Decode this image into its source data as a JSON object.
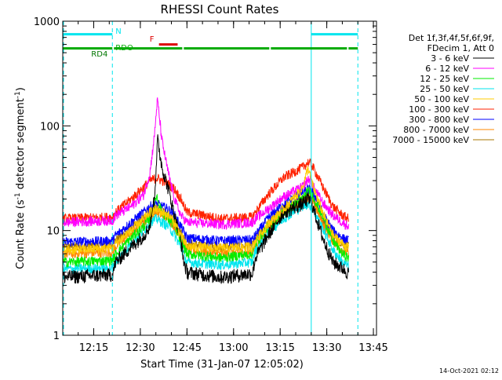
{
  "chart_data": {
    "type": "line",
    "title": "RHESSI Count Rates",
    "xlabel": "Start Time (31-Jan-07 12:05:02)",
    "ylabel_main": "Count Rate (s",
    "ylabel_sup1": "-1",
    "ylabel_mid": " detector segment",
    "ylabel_sup2": "-1",
    "ylabel_end": ")",
    "y_scale": "log",
    "ylim": [
      1,
      1000
    ],
    "xlim": [
      "12:05:02",
      "13:46:00"
    ],
    "x_ticks": [
      {
        "t": "12:15",
        "label": "12:15"
      },
      {
        "t": "12:30",
        "label": "12:30"
      },
      {
        "t": "12:45",
        "label": "12:45"
      },
      {
        "t": "13:00",
        "label": "13:00"
      },
      {
        "t": "13:15",
        "label": "13:15"
      },
      {
        "t": "13:30",
        "label": "13:30"
      },
      {
        "t": "13:45",
        "label": "13:45"
      }
    ],
    "y_ticks": [
      {
        "v": 1,
        "label": "1"
      },
      {
        "v": 10,
        "label": "10"
      },
      {
        "v": 100,
        "label": "100"
      },
      {
        "v": 1000,
        "label": "1000"
      }
    ],
    "legend_header": [
      "Det 1f,3f,4f,5f,6f,9f,",
      "FDecim 1, Att 0"
    ],
    "legend_placement": "right",
    "timestamp": "14-Oct-2021 02:12",
    "vertical_markers": [
      {
        "t": "12:05:02",
        "color": "#00e5ee",
        "style": "dashed"
      },
      {
        "t": "12:21:00",
        "color": "#00e5ee",
        "style": "dashed"
      },
      {
        "t": "13:25:00",
        "color": "#00e5ee",
        "style": "solid"
      },
      {
        "t": "13:40:00",
        "color": "#00e5ee",
        "style": "dashed"
      }
    ],
    "flags": [
      {
        "label": "N",
        "color": "#00e5ee",
        "y": 750,
        "segments": [
          [
            "12:05:02",
            "12:21:00"
          ],
          [
            "13:25:00",
            "13:40:00"
          ]
        ]
      },
      {
        "label": "F",
        "color": "#dd0000",
        "y": 600,
        "segments": [
          [
            "12:36:00",
            "12:42:00"
          ]
        ]
      },
      {
        "label": "RDO",
        "color": "#00aa00",
        "y": 550,
        "segments": [
          [
            "12:05:02",
            "12:21:00"
          ],
          [
            "12:21:30",
            "12:43:30"
          ],
          [
            "12:44:00",
            "13:11:30"
          ],
          [
            "13:12:00",
            "13:36:30"
          ],
          [
            "13:37:00",
            "13:40:00"
          ]
        ]
      },
      {
        "label": "RD4",
        "color": "#007700",
        "y": 500,
        "segments": []
      }
    ],
    "series": [
      {
        "name": "3 - 6 keV",
        "color": "#000000",
        "profile": [
          [
            0,
            3.6
          ],
          [
            16,
            3.8
          ],
          [
            17,
            5.0
          ],
          [
            22,
            7.0
          ],
          [
            26,
            9.0
          ],
          [
            28,
            11.0
          ],
          [
            29.5,
            20
          ],
          [
            30.2,
            50
          ],
          [
            30.5,
            75
          ],
          [
            31,
            60
          ],
          [
            32,
            40
          ],
          [
            34,
            25
          ],
          [
            36,
            14
          ],
          [
            38,
            8
          ],
          [
            39,
            5
          ],
          [
            40,
            4.0
          ],
          [
            51,
            3.6
          ],
          [
            61,
            3.9
          ],
          [
            62,
            5.5
          ],
          [
            66,
            9
          ],
          [
            71,
            15
          ],
          [
            77,
            18
          ],
          [
            79,
            20
          ],
          [
            80,
            19
          ],
          [
            81,
            15
          ],
          [
            84,
            8
          ],
          [
            87,
            5
          ],
          [
            90,
            4.4
          ],
          [
            92,
            3.9
          ]
        ]
      },
      {
        "name": "6 - 12 keV",
        "color": "#ff00ff",
        "profile": [
          [
            0,
            12.0
          ],
          [
            16,
            12.5
          ],
          [
            17,
            14
          ],
          [
            22,
            17
          ],
          [
            26,
            22
          ],
          [
            28,
            35
          ],
          [
            29.5,
            80
          ],
          [
            30.2,
            150
          ],
          [
            30.5,
            178
          ],
          [
            31,
            130
          ],
          [
            32,
            70
          ],
          [
            34,
            35
          ],
          [
            36,
            20
          ],
          [
            38,
            14
          ],
          [
            40,
            12
          ],
          [
            51,
            11.5
          ],
          [
            61,
            12
          ],
          [
            62,
            13
          ],
          [
            66,
            16
          ],
          [
            71,
            21
          ],
          [
            77,
            26
          ],
          [
            79,
            31
          ],
          [
            80,
            30
          ],
          [
            81,
            25
          ],
          [
            84,
            18
          ],
          [
            87,
            14
          ],
          [
            90,
            12
          ],
          [
            92,
            11
          ]
        ]
      },
      {
        "name": "12 - 25 keV",
        "color": "#00ee00",
        "profile": [
          [
            0,
            5.0
          ],
          [
            16,
            5.2
          ],
          [
            17,
            6.0
          ],
          [
            22,
            8.5
          ],
          [
            26,
            11
          ],
          [
            28,
            13
          ],
          [
            29.5,
            18
          ],
          [
            30.2,
            22
          ],
          [
            30.5,
            20
          ],
          [
            31,
            18
          ],
          [
            32,
            15
          ],
          [
            34,
            13
          ],
          [
            36,
            11
          ],
          [
            38,
            8
          ],
          [
            40,
            6
          ],
          [
            51,
            5.5
          ],
          [
            61,
            6
          ],
          [
            62,
            7.5
          ],
          [
            66,
            11
          ],
          [
            71,
            15
          ],
          [
            77,
            20
          ],
          [
            79,
            24
          ],
          [
            80,
            23
          ],
          [
            81,
            20
          ],
          [
            84,
            13
          ],
          [
            87,
            8
          ],
          [
            90,
            6
          ],
          [
            92,
            5.5
          ]
        ]
      },
      {
        "name": "25 - 50 keV",
        "color": "#00e5ee",
        "profile": [
          [
            0,
            4.3
          ],
          [
            16,
            4.4
          ],
          [
            17,
            5.0
          ],
          [
            22,
            7.5
          ],
          [
            26,
            10
          ],
          [
            28,
            12
          ],
          [
            30.2,
            13
          ],
          [
            32,
            12
          ],
          [
            34,
            11
          ],
          [
            36,
            9
          ],
          [
            38,
            7
          ],
          [
            40,
            5
          ],
          [
            51,
            4.7
          ],
          [
            61,
            5
          ],
          [
            62,
            6.5
          ],
          [
            66,
            9.5
          ],
          [
            71,
            13
          ],
          [
            77,
            17
          ],
          [
            79,
            18
          ],
          [
            80,
            17
          ],
          [
            81,
            15
          ],
          [
            84,
            10
          ],
          [
            87,
            6.5
          ],
          [
            90,
            5
          ],
          [
            92,
            4.6
          ]
        ]
      },
      {
        "name": "50 - 100 keV",
        "color": "#ffcc00",
        "profile": [
          [
            0,
            6.5
          ],
          [
            16,
            6.8
          ],
          [
            17,
            7.5
          ],
          [
            22,
            10
          ],
          [
            26,
            13
          ],
          [
            28,
            15
          ],
          [
            30.2,
            16
          ],
          [
            32,
            15
          ],
          [
            34,
            14
          ],
          [
            36,
            12
          ],
          [
            38,
            9
          ],
          [
            40,
            7
          ],
          [
            51,
            6.8
          ],
          [
            61,
            7
          ],
          [
            62,
            8
          ],
          [
            66,
            11.5
          ],
          [
            71,
            16
          ],
          [
            77,
            25
          ],
          [
            79,
            40
          ],
          [
            80,
            30
          ],
          [
            81,
            24
          ],
          [
            84,
            14
          ],
          [
            87,
            9
          ],
          [
            90,
            7.5
          ],
          [
            92,
            6.8
          ]
        ]
      },
      {
        "name": "100 - 300 keV",
        "color": "#ff2200",
        "profile": [
          [
            0,
            13.0
          ],
          [
            16,
            13.5
          ],
          [
            17,
            15
          ],
          [
            22,
            20
          ],
          [
            26,
            26
          ],
          [
            28,
            30
          ],
          [
            30.2,
            32
          ],
          [
            32,
            30
          ],
          [
            34,
            28
          ],
          [
            36,
            25
          ],
          [
            38,
            20
          ],
          [
            40,
            15
          ],
          [
            51,
            13
          ],
          [
            61,
            13.5
          ],
          [
            62,
            15
          ],
          [
            66,
            22
          ],
          [
            71,
            32
          ],
          [
            77,
            40
          ],
          [
            79,
            45
          ],
          [
            80,
            43
          ],
          [
            81,
            38
          ],
          [
            84,
            25
          ],
          [
            87,
            17
          ],
          [
            90,
            14
          ],
          [
            92,
            13
          ]
        ]
      },
      {
        "name": "300 - 800 keV",
        "color": "#0000ff",
        "profile": [
          [
            0,
            7.8
          ],
          [
            16,
            8.0
          ],
          [
            17,
            9
          ],
          [
            22,
            12
          ],
          [
            26,
            15
          ],
          [
            28,
            17
          ],
          [
            30.2,
            18
          ],
          [
            32,
            17
          ],
          [
            34,
            16
          ],
          [
            36,
            14
          ],
          [
            38,
            11
          ],
          [
            40,
            8.5
          ],
          [
            51,
            8
          ],
          [
            61,
            8.2
          ],
          [
            62,
            9
          ],
          [
            66,
            13
          ],
          [
            71,
            18
          ],
          [
            77,
            23
          ],
          [
            79,
            25
          ],
          [
            80,
            24
          ],
          [
            81,
            22
          ],
          [
            84,
            14
          ],
          [
            87,
            10
          ],
          [
            90,
            8.5
          ],
          [
            92,
            8
          ]
        ]
      },
      {
        "name": "800 - 7000 keV",
        "color": "#ff8800",
        "profile": [
          [
            0,
            6.0
          ],
          [
            16,
            6.2
          ],
          [
            17,
            7
          ],
          [
            22,
            9.5
          ],
          [
            26,
            12
          ],
          [
            28,
            14
          ],
          [
            30.2,
            15
          ],
          [
            32,
            14
          ],
          [
            34,
            13
          ],
          [
            36,
            11
          ],
          [
            38,
            8.5
          ],
          [
            40,
            6.5
          ],
          [
            51,
            6
          ],
          [
            61,
            6.2
          ],
          [
            62,
            7.2
          ],
          [
            66,
            10.5
          ],
          [
            71,
            15
          ],
          [
            77,
            19
          ],
          [
            79,
            21
          ],
          [
            80,
            20
          ],
          [
            81,
            18
          ],
          [
            84,
            11
          ],
          [
            87,
            8
          ],
          [
            90,
            6.5
          ],
          [
            92,
            6
          ]
        ]
      },
      {
        "name": "7000 - 15000 keV",
        "color": "#aa7700",
        "profile": [
          [
            0,
            7.0
          ],
          [
            16,
            7.2
          ],
          [
            17,
            8
          ],
          [
            22,
            10.5
          ],
          [
            26,
            13
          ],
          [
            28,
            15
          ],
          [
            30.2,
            16
          ],
          [
            32,
            15
          ],
          [
            34,
            14
          ],
          [
            36,
            12
          ],
          [
            38,
            9.5
          ],
          [
            40,
            7.5
          ],
          [
            51,
            7
          ],
          [
            61,
            7.2
          ],
          [
            62,
            8.2
          ],
          [
            66,
            11.5
          ],
          [
            71,
            16
          ],
          [
            77,
            20
          ],
          [
            79,
            22
          ],
          [
            80,
            21
          ],
          [
            81,
            19
          ],
          [
            84,
            12
          ],
          [
            87,
            9
          ],
          [
            90,
            7.5
          ],
          [
            92,
            7
          ]
        ]
      }
    ]
  }
}
